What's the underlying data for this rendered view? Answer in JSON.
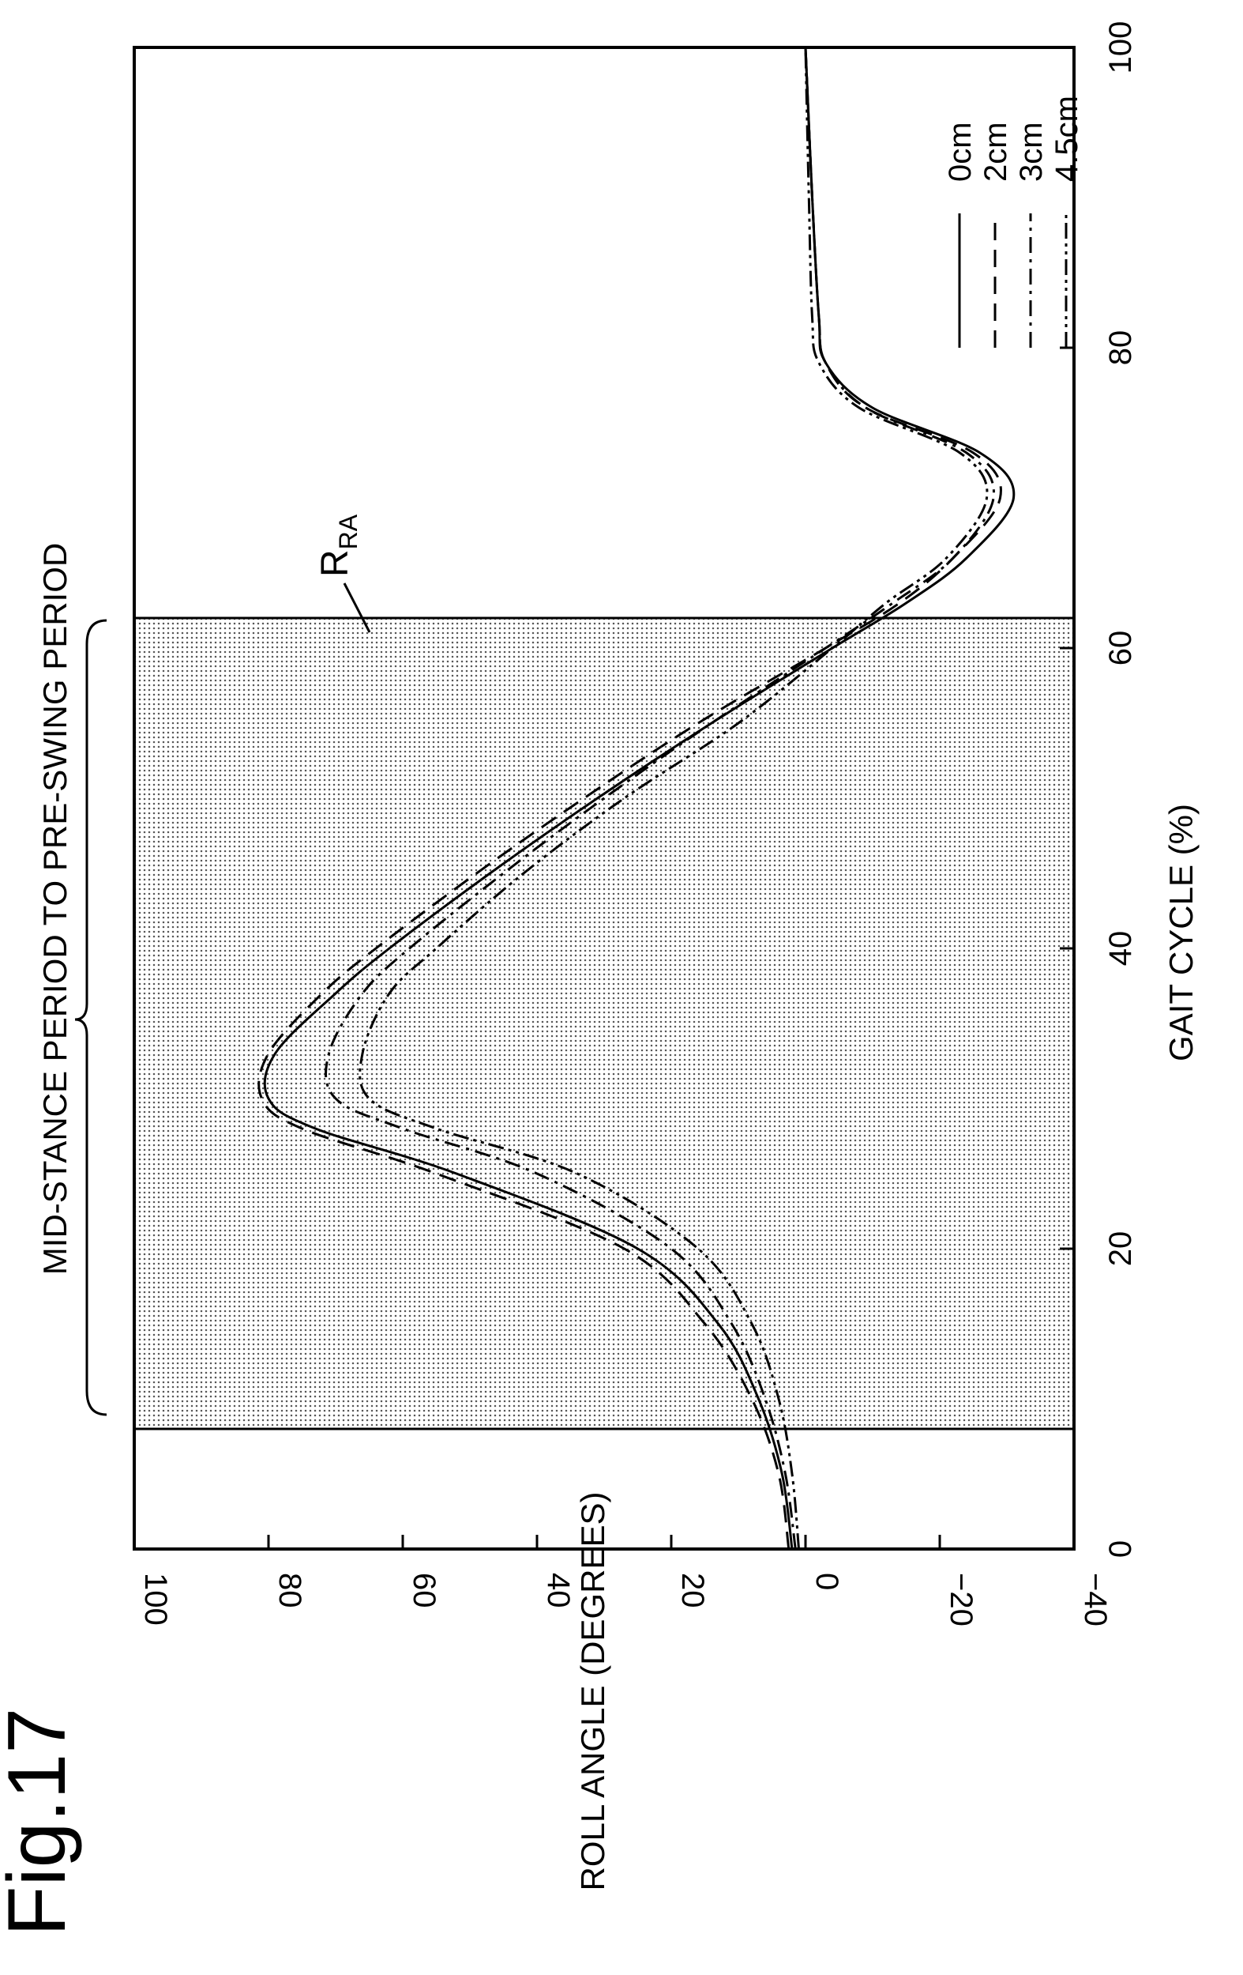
{
  "figure_label": "Fig.17",
  "annotations": {
    "period_label": "MID-STANCE PERIOD TO PRE-SWING PERIOD",
    "region_label_main": "R",
    "region_label_sub": "RA"
  },
  "chart_data": {
    "type": "line",
    "title": "",
    "xlabel": "GAIT CYCLE (%)",
    "ylabel": "ROLL ANGLE (DEGREES)",
    "xlim": [
      0,
      100
    ],
    "ylim": [
      -40,
      100
    ],
    "x_ticks": [
      0,
      20,
      40,
      60,
      80,
      100
    ],
    "y_ticks": [
      100,
      80,
      60,
      40,
      20,
      0,
      -20,
      -40
    ],
    "x_tick_labels": [
      "0",
      "20",
      "40",
      "60",
      "80",
      "100"
    ],
    "y_tick_labels": [
      "100",
      "80",
      "60",
      "40",
      "20",
      "0",
      "−20",
      "−40"
    ],
    "grid": false,
    "legend_position": "top-right",
    "shaded_region": {
      "x_start": 8,
      "x_end": 62,
      "label": "R_RA"
    },
    "series": [
      {
        "name": "0cm",
        "dash": "",
        "x": [
          0,
          5,
          10,
          15,
          20,
          25,
          28,
          30,
          33,
          37,
          40,
          45,
          50,
          55,
          60,
          63,
          66,
          70,
          73,
          76,
          79,
          82,
          90,
          100
        ],
        "values": [
          2.0,
          3.5,
          7,
          13,
          25,
          52,
          73,
          80,
          79,
          70,
          62,
          47,
          31,
          14,
          -4,
          -15,
          -24,
          -31,
          -26,
          -10,
          -3,
          -2,
          -1,
          0
        ]
      },
      {
        "name": "2cm",
        "dash": "22,12",
        "x": [
          0,
          5,
          10,
          15,
          20,
          25,
          28,
          30,
          33,
          37,
          40,
          45,
          50,
          55,
          60,
          63,
          66,
          70,
          73,
          76,
          79,
          82,
          90,
          100
        ],
        "values": [
          2.5,
          4,
          8,
          15,
          27,
          55,
          75,
          81,
          80,
          72,
          64,
          49,
          33,
          16,
          -3,
          -14,
          -22,
          -29,
          -25,
          -9,
          -3,
          -2,
          -1,
          0
        ]
      },
      {
        "name": "3cm",
        "dash": "20,8,4,8",
        "x": [
          0,
          5,
          10,
          15,
          20,
          25,
          28,
          30,
          33,
          37,
          40,
          45,
          50,
          55,
          60,
          63,
          66,
          70,
          73,
          76,
          79,
          82,
          90,
          100
        ],
        "values": [
          1.5,
          3,
          6,
          11,
          20,
          40,
          60,
          70,
          71,
          66,
          59,
          45,
          30,
          14,
          -3,
          -13,
          -22,
          -28,
          -24,
          -9,
          -3,
          -2,
          -1,
          0
        ]
      },
      {
        "name": "4.5cm",
        "dash": "20,6,4,6,4,6",
        "x": [
          0,
          5,
          10,
          15,
          20,
          25,
          28,
          30,
          33,
          37,
          40,
          45,
          50,
          55,
          60,
          63,
          66,
          70,
          73,
          76,
          79,
          82,
          90,
          100
        ],
        "values": [
          1.0,
          2,
          4,
          8,
          16,
          34,
          55,
          65,
          66,
          62,
          55,
          42,
          27,
          10,
          -4,
          -12,
          -21,
          -27,
          -23,
          -8,
          -2,
          -1,
          -0.5,
          0
        ]
      }
    ]
  }
}
